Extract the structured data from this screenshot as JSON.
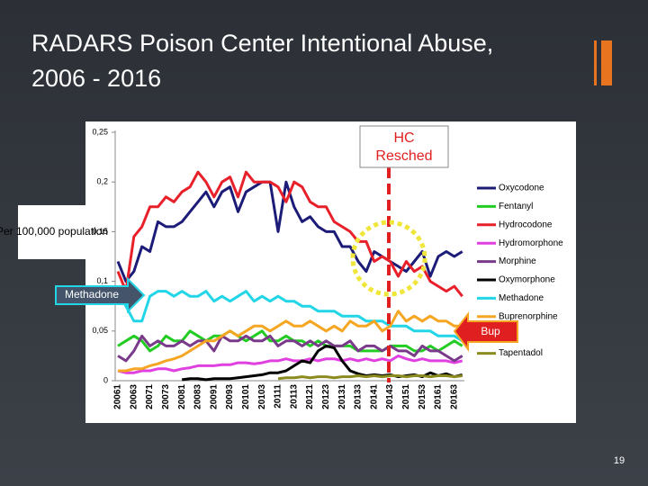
{
  "chart_data": {
    "type": "line",
    "title": "RADARS Poison Center Intentional Abuse,",
    "subtitle": "2006 - 2016",
    "y_label": "Per 100,000 population",
    "annotations": [
      "HC Resched",
      "Methadone",
      "Bup"
    ],
    "page_number": "19",
    "categories": [
      "20061",
      null,
      "20063",
      null,
      "20071",
      null,
      "20073",
      null,
      "20081",
      null,
      "20083",
      null,
      "20091",
      null,
      "20093",
      null,
      "20101",
      null,
      "20103",
      null,
      "20111",
      null,
      "20113",
      null,
      "20121",
      null,
      "20123",
      null,
      "20131",
      null,
      "20133",
      null,
      "20141",
      null,
      "20143",
      null,
      "20151",
      null,
      "20153",
      null,
      "20161",
      null,
      "20163",
      null
    ],
    "ylim": [
      0,
      0.25
    ],
    "yticks": [
      0,
      {
        "value": 0.05,
        "label": "0,05"
      },
      {
        "value": 0.1,
        "label": "0,1"
      },
      {
        "value": 0.15,
        "label": "0,15"
      },
      {
        "value": 0.2,
        "label": "0,2"
      },
      {
        "value": 0.25,
        "label": "0,25"
      }
    ],
    "legend": "right",
    "series": [
      {
        "name": "Oxycodone",
        "color": "#1c1c78",
        "values": [
          0.12,
          0.1,
          0.11,
          0.135,
          0.13,
          0.16,
          0.155,
          0.155,
          0.16,
          0.17,
          0.18,
          0.19,
          0.175,
          0.19,
          0.195,
          0.17,
          0.19,
          0.195,
          0.2,
          0.2,
          0.15,
          0.2,
          0.175,
          0.16,
          0.165,
          0.155,
          0.15,
          0.15,
          0.135,
          0.135,
          0.12,
          0.11,
          0.13,
          0.125,
          0.12,
          0.115,
          0.11,
          0.12,
          0.13,
          0.105,
          0.125,
          0.13,
          0.125,
          0.13
        ]
      },
      {
        "name": "Fentanyl",
        "color": "#22cc22",
        "values": [
          0.035,
          0.04,
          0.045,
          0.04,
          0.03,
          0.035,
          0.045,
          0.04,
          0.04,
          0.05,
          0.045,
          0.04,
          0.045,
          0.045,
          0.05,
          0.045,
          0.04,
          0.045,
          0.05,
          0.04,
          0.04,
          0.045,
          0.04,
          0.04,
          0.035,
          0.04,
          0.035,
          0.035,
          0.035,
          0.035,
          0.03,
          0.03,
          0.03,
          0.03,
          0.035,
          0.035,
          0.035,
          0.03,
          0.03,
          0.035,
          0.03,
          0.035,
          0.04,
          0.035
        ]
      },
      {
        "name": "Hydrocodone",
        "color": "#e8202a",
        "values": [
          0.11,
          0.09,
          0.145,
          0.155,
          0.175,
          0.175,
          0.185,
          0.18,
          0.19,
          0.195,
          0.21,
          0.2,
          0.185,
          0.2,
          0.205,
          0.185,
          0.21,
          0.2,
          0.2,
          0.2,
          0.195,
          0.18,
          0.2,
          0.195,
          0.18,
          0.175,
          0.175,
          0.16,
          0.155,
          0.15,
          0.14,
          0.14,
          0.12,
          0.125,
          0.12,
          0.105,
          0.12,
          0.11,
          0.115,
          0.1,
          0.095,
          0.09,
          0.095,
          0.085
        ]
      },
      {
        "name": "Hydromorphone",
        "color": "#e040e0",
        "values": [
          0.01,
          0.008,
          0.008,
          0.01,
          0.01,
          0.012,
          0.012,
          0.01,
          0.012,
          0.013,
          0.015,
          0.015,
          0.015,
          0.016,
          0.016,
          0.018,
          0.018,
          0.017,
          0.018,
          0.02,
          0.02,
          0.022,
          0.02,
          0.02,
          0.022,
          0.02,
          0.022,
          0.022,
          0.02,
          0.022,
          0.02,
          0.022,
          0.02,
          0.022,
          0.02,
          0.025,
          0.022,
          0.02,
          0.022,
          0.02,
          0.02,
          0.02,
          0.018,
          0.02
        ]
      },
      {
        "name": "Morphine",
        "color": "#7a3a8a",
        "values": [
          0.025,
          0.02,
          0.03,
          0.045,
          0.035,
          0.04,
          0.035,
          0.035,
          0.04,
          0.035,
          0.04,
          0.04,
          0.03,
          0.045,
          0.04,
          0.04,
          0.045,
          0.04,
          0.04,
          0.045,
          0.035,
          0.04,
          0.04,
          0.035,
          0.04,
          0.035,
          0.04,
          0.035,
          0.035,
          0.04,
          0.03,
          0.035,
          0.035,
          0.03,
          0.035,
          0.03,
          0.03,
          0.025,
          0.035,
          0.03,
          0.03,
          0.025,
          0.02,
          0.025
        ]
      },
      {
        "name": "Oxymorphone",
        "color": "#000000",
        "values": [
          null,
          null,
          null,
          null,
          null,
          null,
          null,
          null,
          0.001,
          0.002,
          0.002,
          0.001,
          0.002,
          0.002,
          0.002,
          0.003,
          0.004,
          0.005,
          0.006,
          0.008,
          0.008,
          0.01,
          0.015,
          0.02,
          0.018,
          0.03,
          0.035,
          0.033,
          0.02,
          0.01,
          0.007,
          0.005,
          0.006,
          0.005,
          0.006,
          0.004,
          0.005,
          0.006,
          0.004,
          0.008,
          0.005,
          0.007,
          0.004,
          0.006
        ]
      },
      {
        "name": "Methadone",
        "color": "#22d6e8",
        "values": [
          0.09,
          0.075,
          0.06,
          0.06,
          0.085,
          0.09,
          0.09,
          0.085,
          0.09,
          0.085,
          0.085,
          0.09,
          0.08,
          0.085,
          0.08,
          0.085,
          0.09,
          0.08,
          0.085,
          0.08,
          0.085,
          0.08,
          0.08,
          0.075,
          0.075,
          0.07,
          0.07,
          0.07,
          0.065,
          0.065,
          0.065,
          0.06,
          0.06,
          0.06,
          0.055,
          0.055,
          0.055,
          0.05,
          0.05,
          0.05,
          0.045,
          0.045,
          0.045,
          0.04
        ]
      },
      {
        "name": "Buprenorphine",
        "color": "#f5a623",
        "values": [
          0.01,
          0.01,
          0.012,
          0.012,
          0.015,
          0.017,
          0.02,
          0.022,
          0.025,
          0.03,
          0.035,
          0.04,
          0.04,
          0.045,
          0.05,
          0.045,
          0.05,
          0.055,
          0.055,
          0.05,
          0.055,
          0.06,
          0.055,
          0.055,
          0.06,
          0.055,
          0.05,
          0.055,
          0.05,
          0.06,
          0.055,
          0.055,
          0.06,
          0.05,
          0.055,
          0.07,
          0.06,
          0.065,
          0.06,
          0.065,
          0.06,
          0.06,
          0.055,
          0.055
        ]
      },
      {
        "name": "Tapentadol",
        "color": "#8b8b20",
        "values": [
          null,
          null,
          null,
          null,
          null,
          null,
          null,
          null,
          null,
          null,
          null,
          null,
          null,
          null,
          null,
          null,
          null,
          null,
          null,
          null,
          0.002,
          0.003,
          0.003,
          0.004,
          0.003,
          0.004,
          0.004,
          0.003,
          0.004,
          0.004,
          0.005,
          0.004,
          0.005,
          0.004,
          0.005,
          0.005,
          0.004,
          0.005,
          0.005,
          0.004,
          0.005,
          0.005,
          0.004,
          0.005
        ]
      }
    ]
  }
}
